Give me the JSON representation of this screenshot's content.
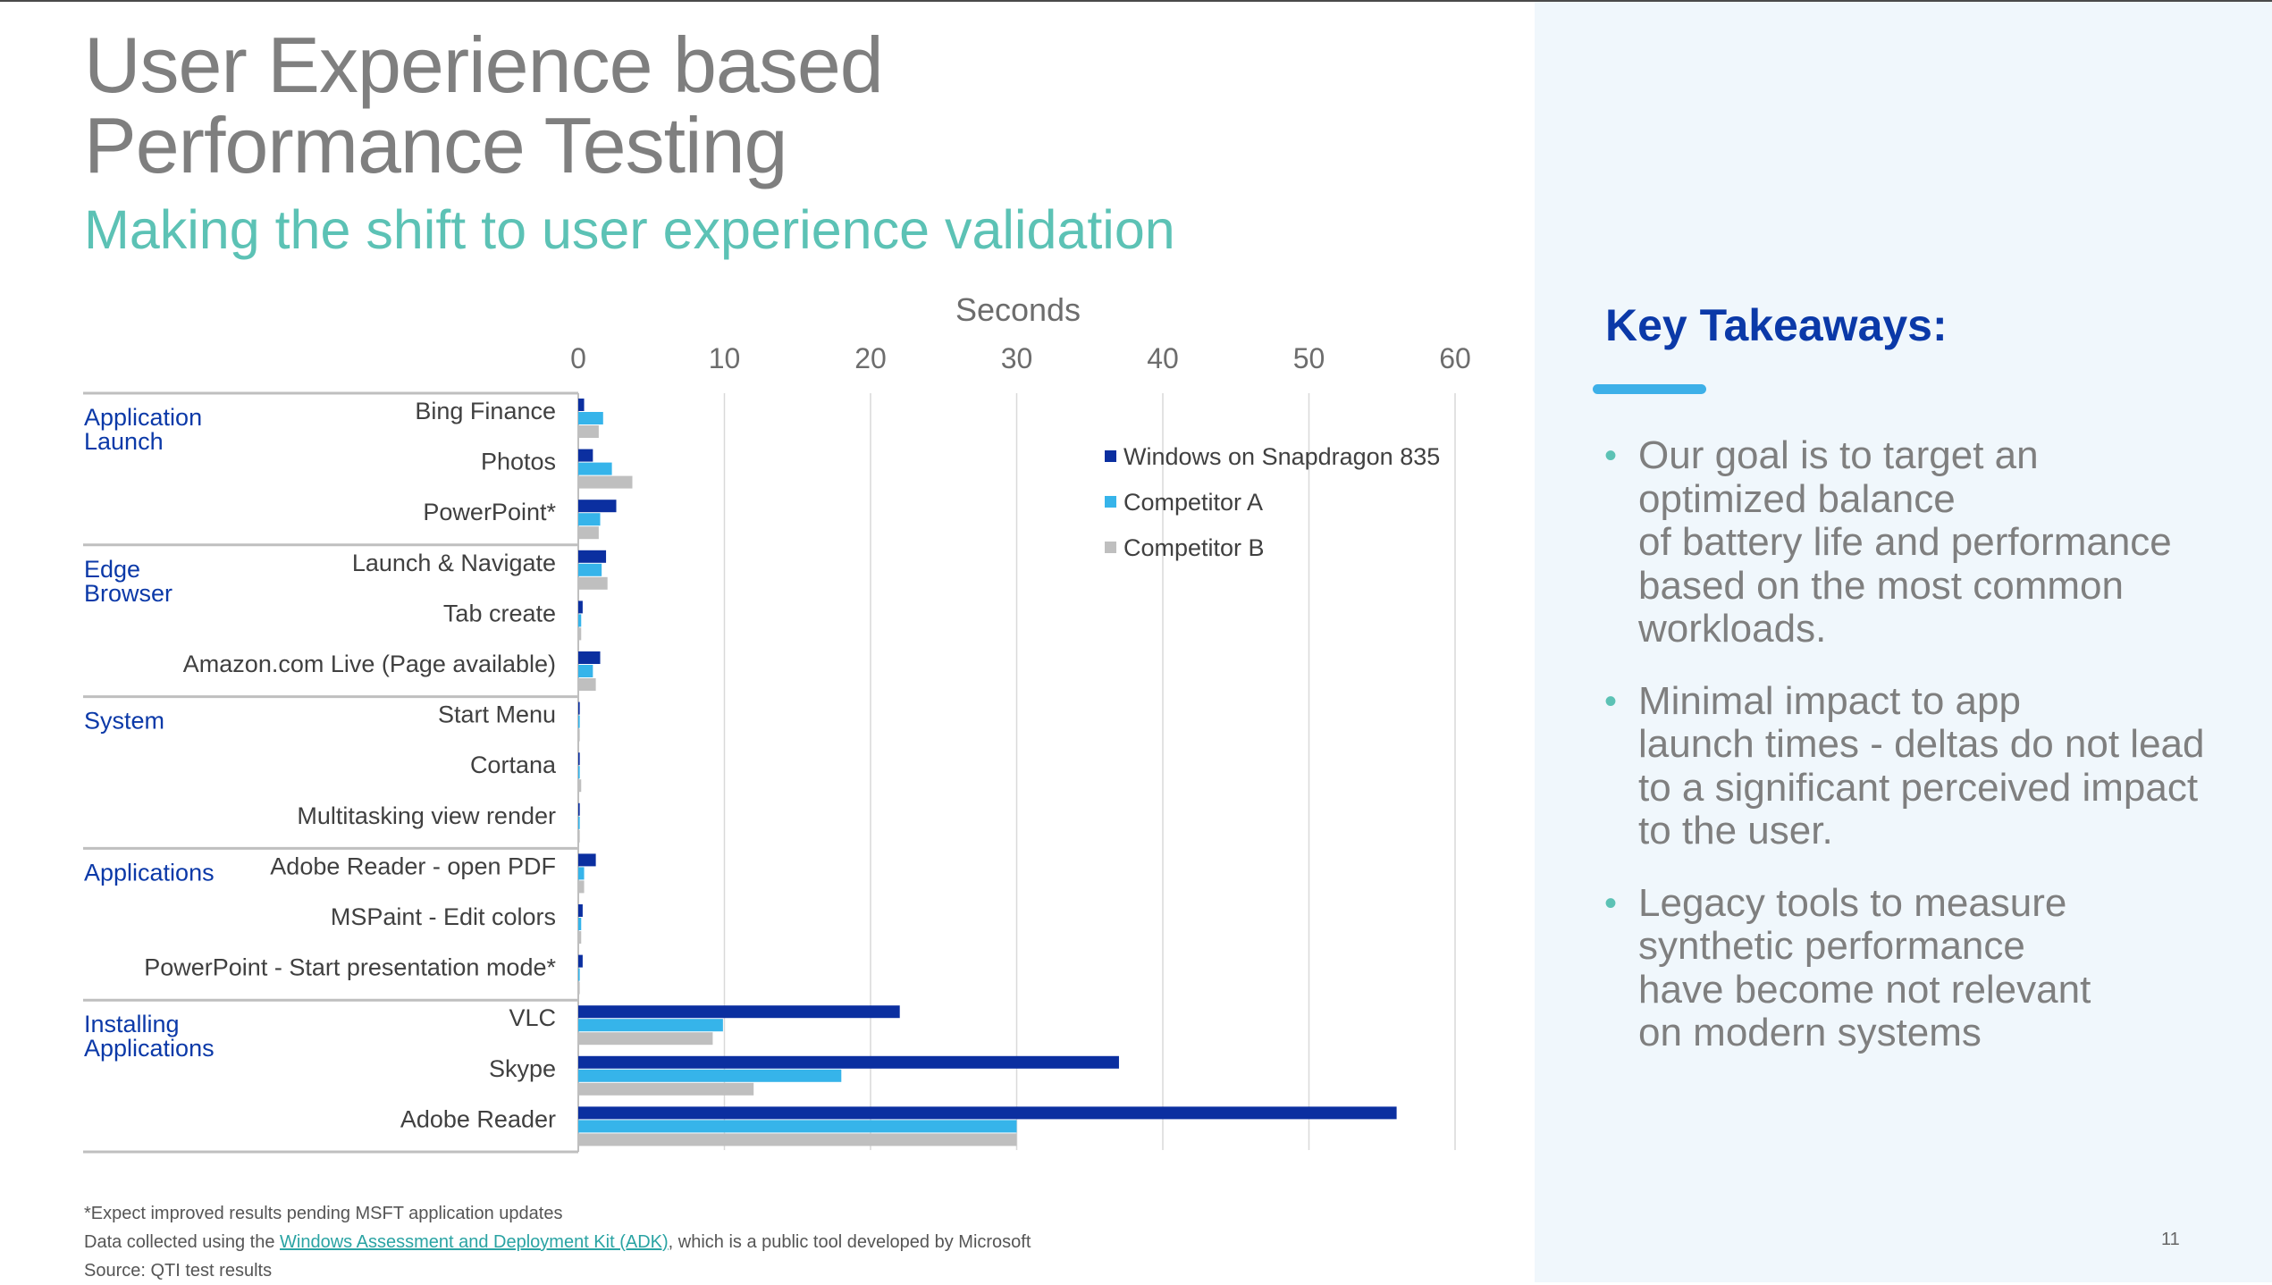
{
  "slide": {
    "title": "User Experience based\nPerformance Testing",
    "subtitle": "Making the shift to user experience validation",
    "page_number": "11"
  },
  "takeaways": {
    "title": "Key Takeaways:",
    "bullet_symbol": "•",
    "items": [
      "Our goal is to target an\noptimized balance\nof battery life and performance\nbased on the most common\nworkloads.",
      "Minimal impact to app\nlaunch times - deltas do not lead\nto a significant perceived impact\nto the user.",
      "Legacy tools to measure\nsynthetic performance\nhave become not relevant\non modern systems"
    ]
  },
  "footnotes": {
    "line1": "*Expect improved results pending MSFT application updates",
    "line2_prefix": "Data collected using the ",
    "line2_link": "Windows Assessment and Deployment Kit (ADK)",
    "line2_suffix": ", which is a public tool developed by Microsoft",
    "line3": "Source: QTI test results"
  },
  "colors": {
    "series": [
      "#0b2fa0",
      "#36b4ea",
      "#bfbfbf"
    ],
    "group_label": "#0b39a8",
    "axis_text": "#6d6d6d",
    "category_text": "#404040",
    "grid": "#d9d9d9"
  },
  "chart_data": {
    "type": "bar",
    "orientation": "horizontal",
    "xlabel": "Seconds",
    "xlim": [
      0,
      60
    ],
    "xticks": [
      0,
      10,
      20,
      30,
      40,
      50,
      60
    ],
    "grid": true,
    "legend_position": "top-right",
    "groups": [
      {
        "label": "Application\nLaunch",
        "categories": [
          "Bing Finance",
          "Photos",
          "PowerPoint*"
        ]
      },
      {
        "label": "Edge\nBrowser",
        "categories": [
          "Launch & Navigate",
          "Tab create",
          "Amazon.com Live (Page available)"
        ]
      },
      {
        "label": "System",
        "categories": [
          "Start Menu",
          "Cortana",
          "Multitasking view render"
        ]
      },
      {
        "label": "Applications",
        "categories": [
          "Adobe Reader - open PDF",
          "MSPaint - Edit colors",
          "PowerPoint - Start presentation mode*"
        ]
      },
      {
        "label": "Installing\nApplications",
        "categories": [
          "VLC",
          "Skype",
          "Adobe Reader"
        ]
      }
    ],
    "series": [
      {
        "name": "Windows on Snapdragon 835",
        "values": [
          0.4,
          1.0,
          2.6,
          1.9,
          0.3,
          1.5,
          0.1,
          0.1,
          0.1,
          1.2,
          0.3,
          0.3,
          22.0,
          37.0,
          56.0
        ]
      },
      {
        "name": "Competitor A",
        "values": [
          1.7,
          2.3,
          1.5,
          1.6,
          0.2,
          1.0,
          0.1,
          0.1,
          0.1,
          0.4,
          0.2,
          0.1,
          9.9,
          18.0,
          30.0
        ]
      },
      {
        "name": "Competitor B",
        "values": [
          1.4,
          3.7,
          1.4,
          2.0,
          0.2,
          1.2,
          0.1,
          0.2,
          0.1,
          0.4,
          0.2,
          0.1,
          9.2,
          12.0,
          30.0
        ]
      }
    ]
  }
}
